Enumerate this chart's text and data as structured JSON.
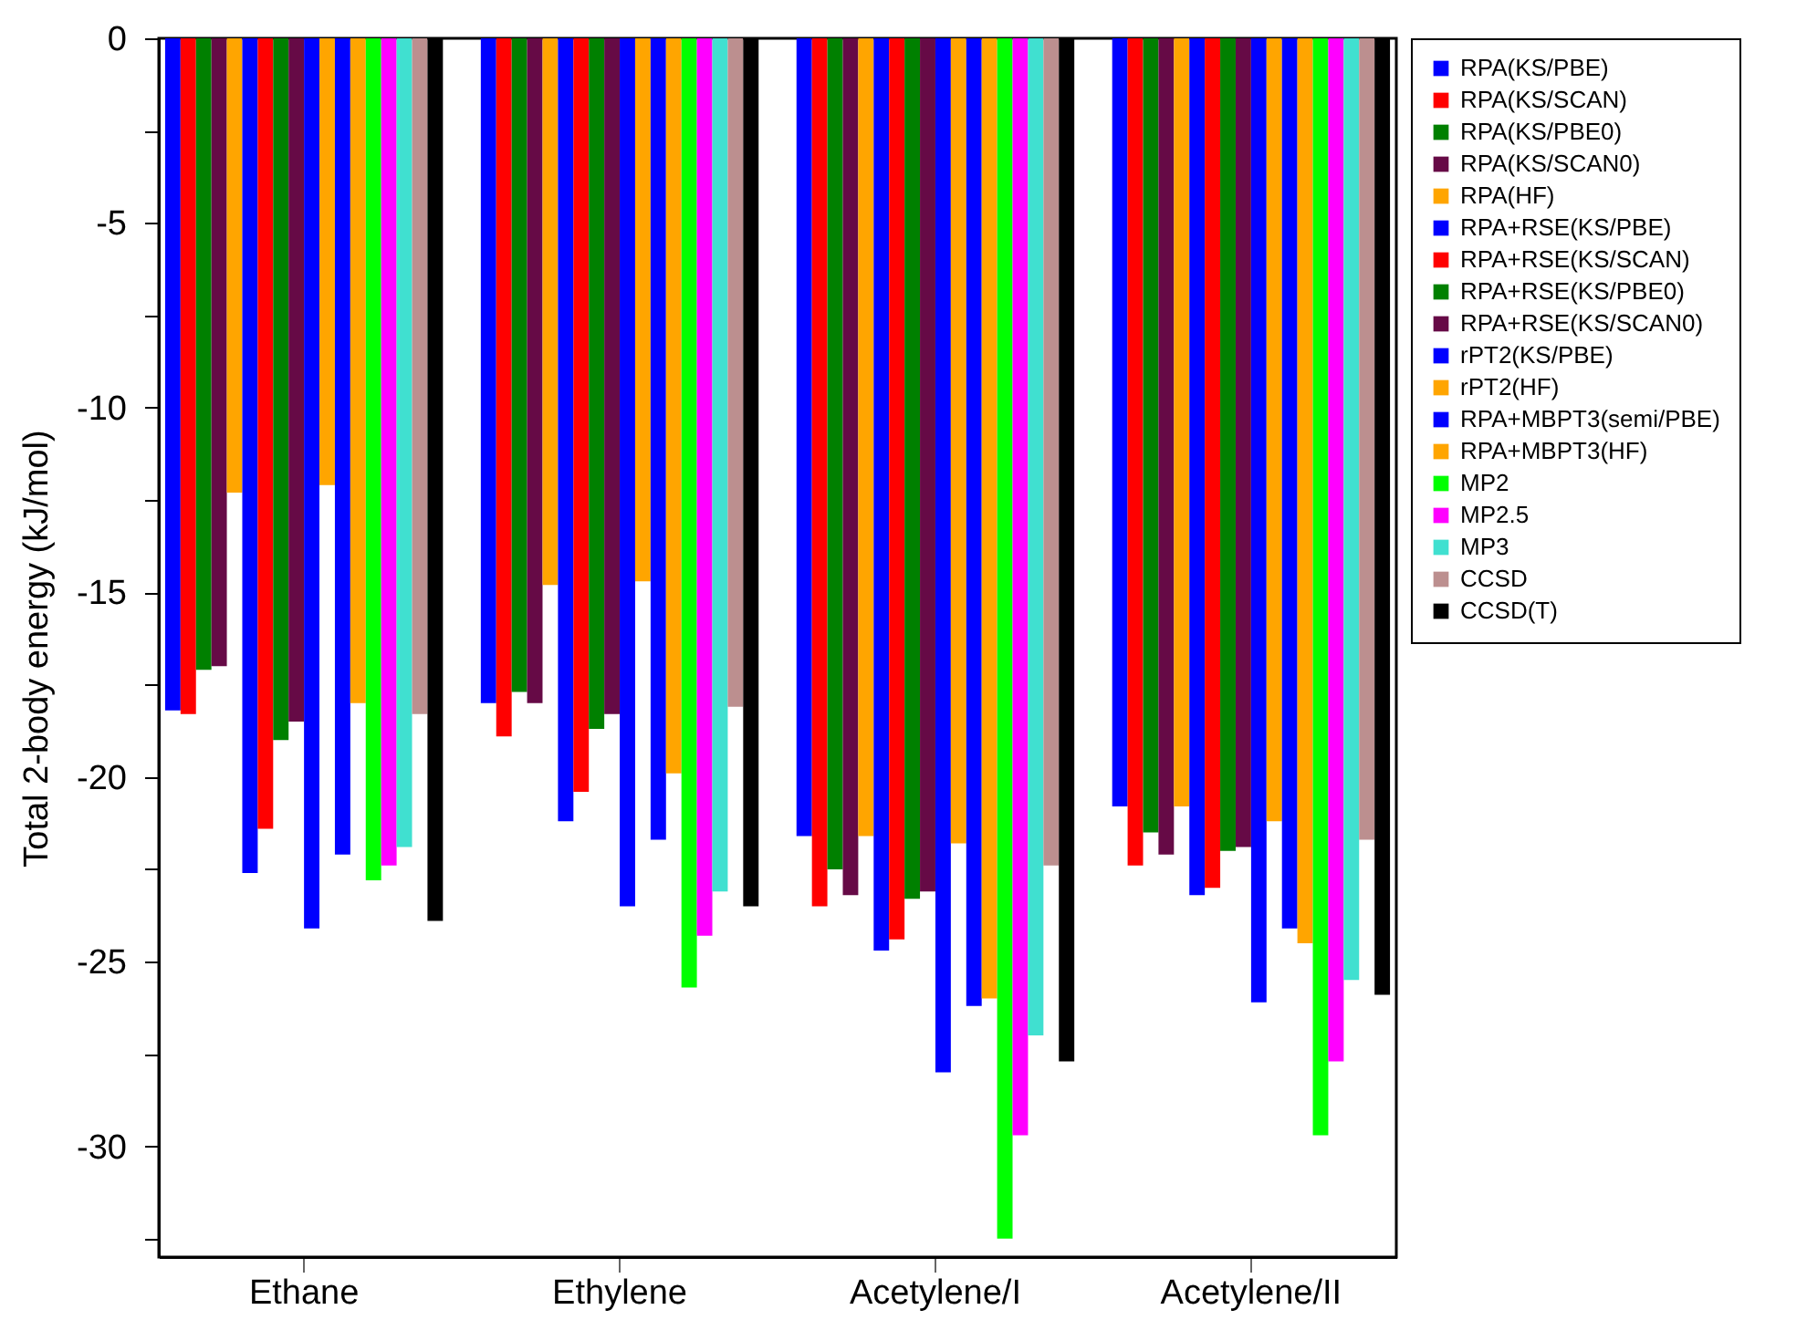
{
  "chart_data": {
    "type": "bar",
    "ylabel": "Total 2-body energy (kJ/mol)",
    "categories": [
      "Ethane",
      "Ethylene",
      "Acetylene/I",
      "Acetylene/II"
    ],
    "series": [
      {
        "name": "RPA(KS/PBE)",
        "color": "#0000ff",
        "values": [
          -18.2,
          -18.0,
          -21.6,
          -20.8
        ]
      },
      {
        "name": "RPA(KS/SCAN)",
        "color": "#ff0000",
        "values": [
          -18.3,
          -18.9,
          -23.5,
          -22.4
        ]
      },
      {
        "name": "RPA(KS/PBE0)",
        "color": "#008000",
        "values": [
          -17.1,
          -17.7,
          -22.5,
          -21.5
        ]
      },
      {
        "name": "RPA(KS/SCAN0)",
        "color": "#660a46",
        "values": [
          -17.0,
          -18.0,
          -23.2,
          -22.1
        ]
      },
      {
        "name": "RPA(HF)",
        "color": "#ffa500",
        "values": [
          -12.3,
          -14.8,
          -21.6,
          -20.8
        ]
      },
      {
        "name": "RPA+RSE(KS/PBE)",
        "color": "#0000ff",
        "values": [
          -22.6,
          -21.2,
          -24.7,
          -23.2
        ]
      },
      {
        "name": "RPA+RSE(KS/SCAN)",
        "color": "#ff0000",
        "values": [
          -21.4,
          -20.4,
          -24.4,
          -23.0
        ]
      },
      {
        "name": "RPA+RSE(KS/PBE0)",
        "color": "#008000",
        "values": [
          -19.0,
          -18.7,
          -23.3,
          -22.0
        ]
      },
      {
        "name": "RPA+RSE(KS/SCAN0)",
        "color": "#660a46",
        "values": [
          -18.5,
          -18.3,
          -23.1,
          -21.9
        ]
      },
      {
        "name": "rPT2(KS/PBE)",
        "color": "#0000ff",
        "values": [
          -24.1,
          -23.5,
          -28.0,
          -26.1
        ]
      },
      {
        "name": "rPT2(HF)",
        "color": "#ffa500",
        "values": [
          -12.1,
          -14.7,
          -21.8,
          -21.2
        ]
      },
      {
        "name": "RPA+MBPT3(semi/PBE)",
        "color": "#0000ff",
        "values": [
          -22.1,
          -21.7,
          -26.2,
          -24.1
        ]
      },
      {
        "name": "RPA+MBPT3(HF)",
        "color": "#ffa500",
        "values": [
          -18.0,
          -19.9,
          -26.0,
          -24.5
        ]
      },
      {
        "name": "MP2",
        "color": "#00ff00",
        "values": [
          -22.8,
          -25.7,
          -32.5,
          -29.7
        ]
      },
      {
        "name": "MP2.5",
        "color": "#ff00ff",
        "values": [
          -22.4,
          -24.3,
          -29.7,
          -27.7
        ]
      },
      {
        "name": "MP3",
        "color": "#40e0d0",
        "values": [
          -21.9,
          -23.1,
          -27.0,
          -25.5
        ]
      },
      {
        "name": "CCSD",
        "color": "#bc8f8f",
        "values": [
          -18.3,
          -18.1,
          -22.4,
          -21.7
        ]
      },
      {
        "name": "CCSD(T)",
        "color": "#000000",
        "values": [
          -23.9,
          -23.5,
          -27.7,
          -25.9
        ]
      }
    ],
    "ylim": [
      -33,
      0
    ],
    "yticks": [
      0,
      {
        "value": -2.5,
        "label": null
      },
      -5,
      {
        "value": -7.5,
        "label": null
      },
      -10,
      {
        "value": -12.5,
        "label": null
      },
      -15,
      {
        "value": -17.5,
        "label": null
      },
      -20,
      {
        "value": -22.5,
        "label": null
      },
      -25,
      {
        "value": -27.5,
        "label": null
      },
      -30,
      {
        "value": -32.5,
        "label": null
      }
    ],
    "grid": false,
    "legend": "right"
  }
}
